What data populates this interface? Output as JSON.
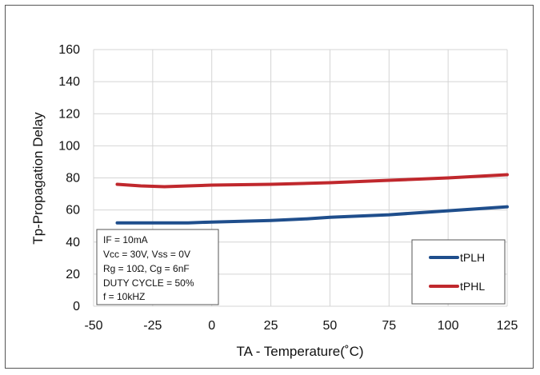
{
  "chart_data": {
    "type": "line",
    "title": "",
    "xlabel": "TA - Temperature(˚C)",
    "ylabel": "Tp-Propagation Delay",
    "xlim": [
      -50,
      125
    ],
    "ylim": [
      0,
      160
    ],
    "xticks": [
      "-50",
      "-25",
      "0",
      "25",
      "50",
      "75",
      "100",
      "125"
    ],
    "yticks": [
      "0",
      "20",
      "40",
      "60",
      "80",
      "100",
      "120",
      "140",
      "160"
    ],
    "grid": true,
    "legend_position": "bottom-right",
    "series": [
      {
        "name": "tPLH",
        "color": "#1f4e8c",
        "x": [
          -40,
          -25,
          -10,
          0,
          25,
          40,
          50,
          75,
          100,
          125
        ],
        "y": [
          52,
          52,
          52,
          52.5,
          53.5,
          54.5,
          55.5,
          57,
          59.5,
          62
        ]
      },
      {
        "name": "tPHL",
        "color": "#c0282d",
        "x": [
          -40,
          -30,
          -20,
          -10,
          0,
          25,
          50,
          75,
          100,
          125
        ],
        "y": [
          76,
          75,
          74.5,
          75,
          75.5,
          76,
          77,
          78.5,
          80,
          82
        ]
      }
    ],
    "conditions": [
      "IF = 10mA",
      "Vcc = 30V, Vss = 0V",
      "Rg = 10Ω, Cg = 6nF",
      "DUTY CYCLE = 50%",
      "f = 10kHZ"
    ]
  }
}
